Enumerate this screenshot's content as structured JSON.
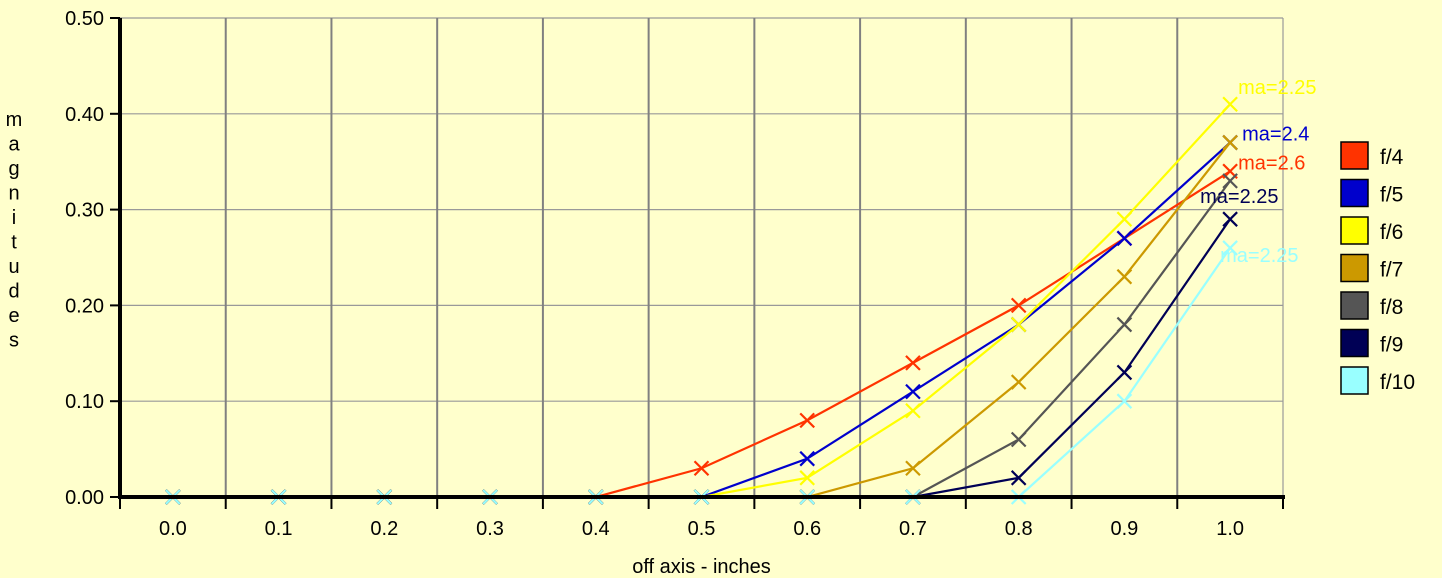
{
  "chart_data": {
    "type": "line",
    "xlabel": "off axis - inches",
    "ylabel": "magnitudes",
    "x": [
      0.0,
      0.1,
      0.2,
      0.3,
      0.4,
      0.5,
      0.6,
      0.7,
      0.8,
      0.9,
      1.0
    ],
    "x_tick_labels": [
      "0.0",
      "0.1",
      "0.2",
      "0.3",
      "0.4",
      "0.5",
      "0.6",
      "0.7",
      "0.8",
      "0.9",
      "1.0"
    ],
    "y_tick_labels": [
      "0.00",
      "0.10",
      "0.20",
      "0.30",
      "0.40",
      "0.50"
    ],
    "ylim": [
      0,
      0.5
    ],
    "grid": "vertical",
    "legend_position": "right",
    "series": [
      {
        "name": "f/4",
        "color": "#ff3300",
        "values": [
          0,
          0,
          0,
          0,
          0,
          0.03,
          0.08,
          0.14,
          0.2,
          0.27,
          0.34
        ],
        "annotation": "ma=2.6"
      },
      {
        "name": "f/5",
        "color": "#0000cc",
        "values": [
          0,
          0,
          0,
          0,
          0,
          0,
          0.04,
          0.11,
          0.18,
          0.27,
          0.37
        ],
        "annotation": "ma=2.4"
      },
      {
        "name": "f/6",
        "color": "#ffff00",
        "values": [
          0,
          0,
          0,
          0,
          0,
          0,
          0.02,
          0.09,
          0.18,
          0.29,
          0.41
        ],
        "annotation": "ma=2.25"
      },
      {
        "name": "f/7",
        "color": "#cc9900",
        "values": [
          0,
          0,
          0,
          0,
          0,
          0,
          0,
          0.03,
          0.12,
          0.23,
          0.37
        ],
        "annotation": ""
      },
      {
        "name": "f/8",
        "color": "#555555",
        "values": [
          0,
          0,
          0,
          0,
          0,
          0,
          0,
          0,
          0.06,
          0.18,
          0.33
        ],
        "annotation": ""
      },
      {
        "name": "f/9",
        "color": "#000055",
        "values": [
          0,
          0,
          0,
          0,
          0,
          0,
          0,
          0,
          0.02,
          0.13,
          0.29
        ],
        "annotation": "ma=2.25"
      },
      {
        "name": "f/10",
        "color": "#99ffff",
        "values": [
          0,
          0,
          0,
          0,
          0,
          0,
          0,
          0,
          0,
          0.1,
          0.26
        ],
        "annotation": "ma=2.25"
      }
    ]
  }
}
